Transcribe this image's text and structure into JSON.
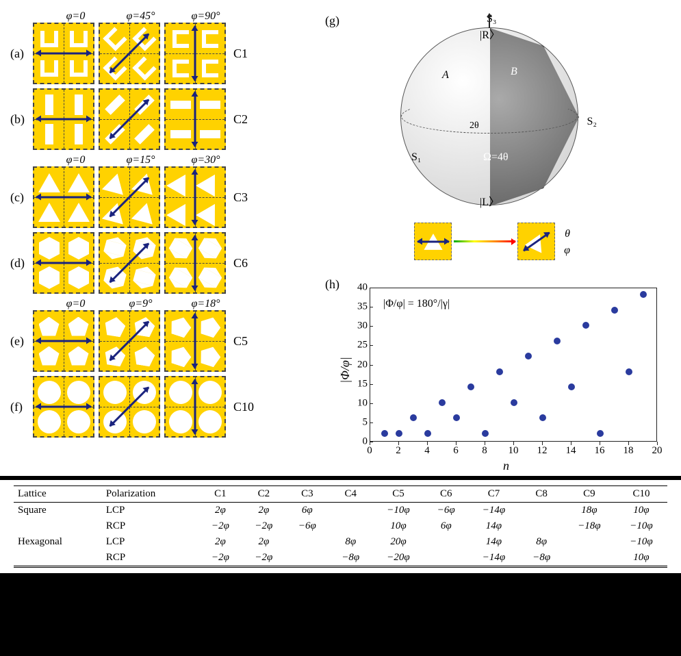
{
  "rows": [
    {
      "label": "(a)",
      "cn": "C1",
      "shape": "ushape"
    },
    {
      "label": "(b)",
      "cn": "C2",
      "shape": "barshape"
    },
    {
      "label": "(c)",
      "cn": "C3",
      "shape": "trishape"
    },
    {
      "label": "(d)",
      "cn": "C6",
      "shape": "hexshape"
    },
    {
      "label": "(e)",
      "cn": "C5",
      "shape": "pentshape"
    },
    {
      "label": "(f)",
      "cn": "C10",
      "shape": "circleshape"
    }
  ],
  "angle_groups": [
    {
      "before_row": 0,
      "labels": [
        "φ=0",
        "φ=45°",
        "φ=90°"
      ],
      "arrow_angles": [
        0,
        -45,
        -90
      ],
      "shape_rot_step": 45
    },
    {
      "before_row": 2,
      "labels": [
        "φ=0",
        "φ=15°",
        "φ=30°"
      ],
      "arrow_angles": [
        0,
        -45,
        -90
      ],
      "shape_rot_step": 15
    },
    {
      "before_row": 4,
      "labels": [
        "φ=0",
        "φ=9°",
        "φ=18°"
      ],
      "arrow_angles": [
        0,
        -45,
        -90
      ],
      "shape_rot_step": 9
    }
  ],
  "sphere": {
    "panel": "(g)",
    "labels": {
      "S3": "S₃",
      "S2": "S₂",
      "S1": "S₁",
      "R": "|R〉",
      "L": "|L〉",
      "A": "A",
      "B": "B",
      "omega": "Ω=4θ",
      "twotheta": "2θ",
      "theta": "θ",
      "phi": "φ"
    }
  },
  "plot": {
    "panel": "(h)",
    "xlabel": "n",
    "ylabel": "|Φ/φ|",
    "annotation": "|Φ/φ| = 180°/|γ|",
    "ylim": [
      0,
      40
    ],
    "ytick_step": 5,
    "xlim": [
      0,
      20
    ],
    "xtick_step": 2,
    "points": [
      {
        "x": 1,
        "y": 2
      },
      {
        "x": 2,
        "y": 2
      },
      {
        "x": 3,
        "y": 6
      },
      {
        "x": 4,
        "y": 2
      },
      {
        "x": 5,
        "y": 10
      },
      {
        "x": 6,
        "y": 6
      },
      {
        "x": 7,
        "y": 14
      },
      {
        "x": 8,
        "y": 2
      },
      {
        "x": 9,
        "y": 18
      },
      {
        "x": 10,
        "y": 10
      },
      {
        "x": 11,
        "y": 22
      },
      {
        "x": 12,
        "y": 6
      },
      {
        "x": 13,
        "y": 26
      },
      {
        "x": 14,
        "y": 14
      },
      {
        "x": 15,
        "y": 30
      },
      {
        "x": 16,
        "y": 2
      },
      {
        "x": 17,
        "y": 34
      },
      {
        "x": 18,
        "y": 18
      },
      {
        "x": 19,
        "y": 38
      }
    ],
    "point_color": "#2a3b9e"
  },
  "table": {
    "headers": [
      "Lattice",
      "Polarization",
      "C1",
      "C2",
      "C3",
      "C4",
      "C5",
      "C6",
      "C7",
      "C8",
      "C9",
      "C10"
    ],
    "rows": [
      {
        "lattice": "Square",
        "pol": "LCP",
        "cells": [
          "2φ",
          "2φ",
          "6φ",
          "",
          "−10φ",
          "−6φ",
          "−14φ",
          "",
          "18φ",
          "10φ"
        ]
      },
      {
        "lattice": "",
        "pol": "RCP",
        "cells": [
          "−2φ",
          "−2φ",
          "−6φ",
          "",
          "10φ",
          "6φ",
          "14φ",
          "",
          "−18φ",
          "−10φ"
        ]
      },
      {
        "lattice": "Hexagonal",
        "pol": "LCP",
        "cells": [
          "2φ",
          "2φ",
          "",
          "8φ",
          "20φ",
          "",
          "14φ",
          "8φ",
          "",
          "−10φ"
        ]
      },
      {
        "lattice": "",
        "pol": "RCP",
        "cells": [
          "−2φ",
          "−2φ",
          "",
          "−8φ",
          "−20φ",
          "",
          "−14φ",
          "−8φ",
          "",
          "10φ"
        ]
      }
    ]
  }
}
